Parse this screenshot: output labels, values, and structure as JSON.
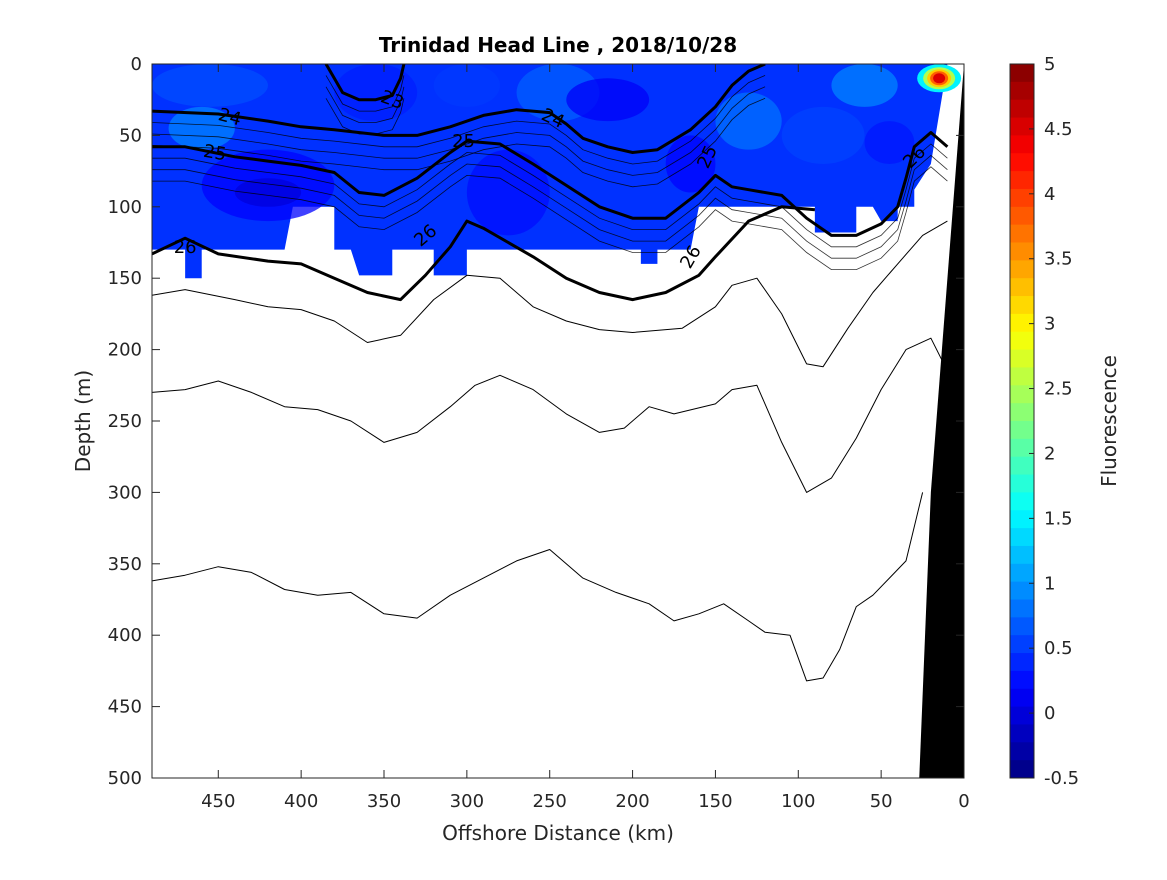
{
  "chart_data": {
    "type": "contour-section",
    "title": "Trinidad Head Line , 2018/10/28",
    "xlabel": "Offshore Distance (km)",
    "ylabel": "Depth (m)",
    "xlim": [
      490,
      0
    ],
    "ylim": [
      0,
      500
    ],
    "x_reversed": true,
    "y_reversed": true,
    "xticks": [
      450,
      400,
      350,
      300,
      250,
      200,
      150,
      100,
      50,
      0
    ],
    "yticks": [
      0,
      50,
      100,
      150,
      200,
      250,
      300,
      350,
      400,
      450,
      500
    ],
    "colorbar": {
      "label": "Fluorescence",
      "range": [
        -0.5,
        5
      ],
      "ticks": [
        -0.5,
        0,
        0.5,
        1,
        1.5,
        2,
        2.5,
        3,
        3.5,
        4,
        4.5,
        5
      ],
      "colormap": "jet"
    },
    "density_contours": [
      {
        "level": 23,
        "label": "23",
        "bold": true,
        "points": [
          [
            385,
            0
          ],
          [
            380,
            10
          ],
          [
            375,
            20
          ],
          [
            365,
            25
          ],
          [
            355,
            25
          ],
          [
            345,
            22
          ],
          [
            340,
            10
          ],
          [
            338,
            0
          ]
        ]
      },
      {
        "level": 24,
        "label": "24",
        "bold": true,
        "points": [
          [
            490,
            33
          ],
          [
            450,
            35
          ],
          [
            420,
            40
          ],
          [
            400,
            44
          ],
          [
            380,
            46
          ],
          [
            350,
            50
          ],
          [
            330,
            50
          ],
          [
            310,
            44
          ],
          [
            290,
            36
          ],
          [
            270,
            32
          ],
          [
            250,
            34
          ],
          [
            240,
            42
          ],
          [
            230,
            52
          ],
          [
            215,
            58
          ],
          [
            200,
            62
          ],
          [
            185,
            60
          ],
          [
            165,
            46
          ],
          [
            150,
            30
          ],
          [
            140,
            15
          ],
          [
            130,
            5
          ],
          [
            120,
            0
          ]
        ]
      },
      {
        "level": 25,
        "label": "25",
        "bold": true,
        "points": [
          [
            490,
            58
          ],
          [
            470,
            58
          ],
          [
            440,
            65
          ],
          [
            420,
            68
          ],
          [
            400,
            71
          ],
          [
            380,
            76
          ],
          [
            365,
            90
          ],
          [
            350,
            92
          ],
          [
            330,
            80
          ],
          [
            310,
            62
          ],
          [
            300,
            54
          ],
          [
            280,
            56
          ],
          [
            260,
            70
          ],
          [
            240,
            85
          ],
          [
            220,
            100
          ],
          [
            200,
            108
          ],
          [
            180,
            108
          ],
          [
            160,
            90
          ],
          [
            150,
            78
          ],
          [
            140,
            86
          ],
          [
            130,
            88
          ],
          [
            110,
            92
          ],
          [
            95,
            108
          ],
          [
            80,
            120
          ],
          [
            65,
            120
          ],
          [
            50,
            112
          ],
          [
            40,
            100
          ],
          [
            35,
            80
          ],
          [
            30,
            58
          ],
          [
            20,
            48
          ],
          [
            10,
            58
          ]
        ]
      },
      {
        "level": 26,
        "label": "26",
        "bold": true,
        "points": [
          [
            490,
            133
          ],
          [
            470,
            122
          ],
          [
            450,
            133
          ],
          [
            420,
            138
          ],
          [
            400,
            140
          ],
          [
            380,
            150
          ],
          [
            360,
            160
          ],
          [
            340,
            165
          ],
          [
            325,
            148
          ],
          [
            310,
            128
          ],
          [
            300,
            110
          ],
          [
            290,
            115
          ],
          [
            260,
            135
          ],
          [
            240,
            150
          ],
          [
            220,
            160
          ],
          [
            200,
            165
          ],
          [
            180,
            160
          ],
          [
            160,
            148
          ],
          [
            150,
            135
          ],
          [
            130,
            110
          ],
          [
            110,
            100
          ],
          [
            90,
            102
          ]
        ]
      },
      {
        "level": 26.2,
        "label": "",
        "bold": false,
        "points": [
          [
            490,
            162
          ],
          [
            470,
            158
          ],
          [
            440,
            165
          ],
          [
            420,
            170
          ],
          [
            400,
            172
          ],
          [
            380,
            180
          ],
          [
            360,
            195
          ],
          [
            340,
            190
          ],
          [
            320,
            165
          ],
          [
            300,
            148
          ],
          [
            280,
            150
          ],
          [
            260,
            170
          ],
          [
            240,
            180
          ],
          [
            220,
            186
          ],
          [
            200,
            188
          ],
          [
            170,
            185
          ],
          [
            150,
            170
          ],
          [
            140,
            155
          ],
          [
            125,
            150
          ],
          [
            110,
            175
          ],
          [
            95,
            210
          ],
          [
            85,
            212
          ],
          [
            70,
            185
          ],
          [
            55,
            160
          ],
          [
            40,
            140
          ],
          [
            25,
            120
          ],
          [
            10,
            110
          ]
        ]
      },
      {
        "level": 26.4,
        "label": "",
        "bold": false,
        "points": [
          [
            490,
            230
          ],
          [
            470,
            228
          ],
          [
            450,
            222
          ],
          [
            430,
            230
          ],
          [
            410,
            240
          ],
          [
            390,
            242
          ],
          [
            370,
            250
          ],
          [
            350,
            265
          ],
          [
            330,
            258
          ],
          [
            310,
            240
          ],
          [
            295,
            225
          ],
          [
            280,
            218
          ],
          [
            260,
            228
          ],
          [
            240,
            245
          ],
          [
            220,
            258
          ],
          [
            205,
            255
          ],
          [
            190,
            240
          ],
          [
            175,
            245
          ],
          [
            150,
            238
          ],
          [
            140,
            228
          ],
          [
            125,
            225
          ],
          [
            110,
            265
          ],
          [
            95,
            300
          ],
          [
            80,
            290
          ],
          [
            65,
            262
          ],
          [
            50,
            228
          ],
          [
            35,
            200
          ],
          [
            20,
            192
          ],
          [
            10,
            215
          ]
        ]
      },
      {
        "level": 26.6,
        "label": "",
        "bold": false,
        "points": [
          [
            490,
            362
          ],
          [
            470,
            358
          ],
          [
            450,
            352
          ],
          [
            430,
            356
          ],
          [
            410,
            368
          ],
          [
            390,
            372
          ],
          [
            370,
            370
          ],
          [
            350,
            385
          ],
          [
            330,
            388
          ],
          [
            310,
            372
          ],
          [
            290,
            360
          ],
          [
            270,
            348
          ],
          [
            250,
            340
          ],
          [
            230,
            360
          ],
          [
            210,
            370
          ],
          [
            190,
            378
          ],
          [
            175,
            390
          ],
          [
            160,
            385
          ],
          [
            145,
            378
          ],
          [
            130,
            390
          ],
          [
            120,
            398
          ],
          [
            105,
            400
          ],
          [
            95,
            432
          ],
          [
            85,
            430
          ],
          [
            75,
            410
          ],
          [
            65,
            380
          ],
          [
            55,
            372
          ],
          [
            45,
            360
          ],
          [
            35,
            348
          ],
          [
            25,
            300
          ]
        ]
      }
    ],
    "fluorescence_field": {
      "value_range_observed": [
        -0.2,
        5
      ],
      "sampled_max_depth": 130,
      "high_patch": {
        "x_km": [
          5,
          25
        ],
        "depth_m": [
          0,
          20
        ],
        "peak_value": 4.5
      }
    }
  }
}
